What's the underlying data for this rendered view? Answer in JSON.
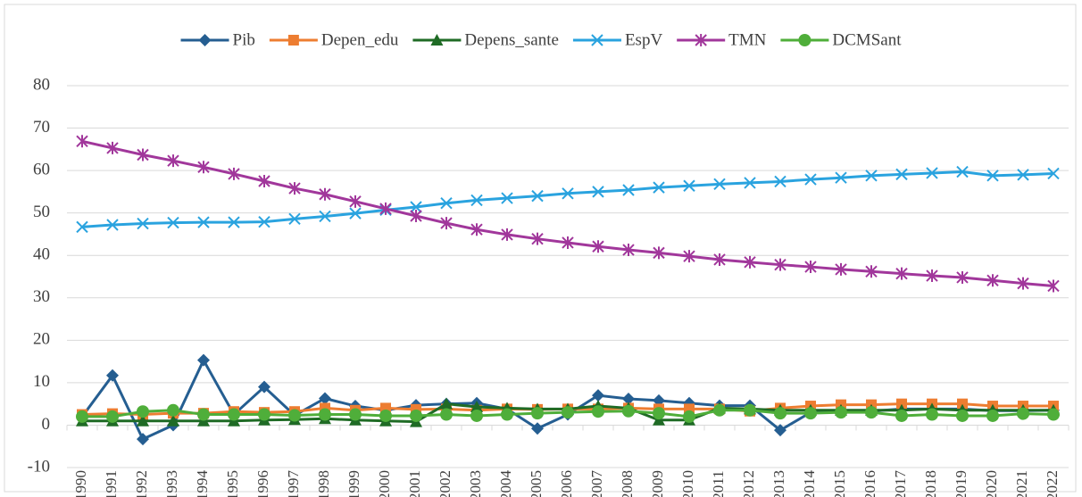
{
  "chart_data": {
    "type": "line",
    "categories": [
      "1990",
      "1991",
      "1992",
      "1993",
      "1994",
      "1995",
      "1996",
      "1997",
      "1998",
      "1999",
      "2000",
      "2001",
      "2002",
      "2003",
      "2004",
      "2005",
      "2006",
      "2007",
      "2008",
      "2009",
      "2010",
      "2011",
      "2012",
      "2013",
      "2014",
      "2015",
      "2016",
      "2017",
      "2018",
      "2019",
      "2020",
      "2021",
      "2022"
    ],
    "ylim": [
      -10,
      80
    ],
    "yticks": [
      -10,
      0,
      10,
      20,
      30,
      40,
      50,
      60,
      70,
      80
    ],
    "grid": true,
    "legend": "top",
    "series": [
      {
        "name": "Pib",
        "color": "#255e91",
        "marker": "diamond",
        "values": [
          2,
          11.7,
          -3.3,
          0,
          15.3,
          2.5,
          9,
          2.3,
          6.3,
          4.5,
          3.5,
          4.7,
          5,
          5.2,
          3.8,
          -0.8,
          2.5,
          7,
          6.2,
          5.8,
          5.2,
          4.6,
          4.6,
          -1.2,
          3,
          3.2,
          3.3,
          3.8,
          3.8,
          3.8,
          3.4,
          3.4,
          3.5
        ]
      },
      {
        "name": "Depen_edu",
        "color": "#ed7d31",
        "marker": "square",
        "values": [
          2.5,
          2.7,
          2.5,
          2.8,
          2.8,
          3.2,
          3,
          3.2,
          4,
          3.5,
          4,
          3.7,
          3.8,
          3.5,
          3.8,
          3.7,
          3.8,
          3.8,
          4,
          3.8,
          3.8,
          3.8,
          3.3,
          4,
          4.5,
          4.8,
          4.8,
          5,
          5,
          5,
          4.5,
          4.5,
          4.5
        ]
      },
      {
        "name": "Depens_sante",
        "color": "#1f6b25",
        "marker": "triangle",
        "values": [
          1,
          1,
          1,
          1,
          1,
          1,
          1.2,
          1.3,
          1.5,
          1.2,
          1,
          0.8,
          5,
          4.3,
          4,
          3.8,
          3.8,
          4.5,
          4,
          1.2,
          1.2,
          4,
          3.8,
          3.5,
          3.5,
          3.5,
          3.5,
          3.5,
          3.8,
          3.5,
          3.5,
          3.5,
          3.5
        ]
      },
      {
        "name": "EspV",
        "color": "#2aa3df",
        "marker": "x",
        "values": [
          46.7,
          47.2,
          47.5,
          47.7,
          47.8,
          47.8,
          47.9,
          48.6,
          49.2,
          49.9,
          50.7,
          51.4,
          52.3,
          53,
          53.5,
          54,
          54.6,
          55,
          55.4,
          56,
          56.4,
          56.8,
          57.1,
          57.4,
          57.9,
          58.3,
          58.8,
          59.1,
          59.4,
          59.7,
          58.8,
          59,
          59.3
        ]
      },
      {
        "name": "TMN",
        "color": "#a1379b",
        "marker": "star",
        "values": [
          66.9,
          65.3,
          63.7,
          62.3,
          60.8,
          59.2,
          57.5,
          55.8,
          54.4,
          52.7,
          51,
          49.3,
          47.6,
          46.1,
          44.9,
          43.9,
          43,
          42.1,
          41.3,
          40.6,
          39.8,
          39,
          38.4,
          37.8,
          37.3,
          36.7,
          36.2,
          35.7,
          35.2,
          34.8,
          34.1,
          33.4,
          32.8
        ]
      },
      {
        "name": "DCMSant",
        "color": "#4fae3a",
        "marker": "circle",
        "values": [
          2,
          2,
          3.2,
          3.5,
          2.5,
          2.5,
          2.5,
          2.3,
          2.5,
          2.5,
          2.2,
          2.2,
          2.5,
          2.2,
          2.5,
          2.8,
          3,
          3.2,
          3.3,
          2.8,
          2,
          3.5,
          3.5,
          2.8,
          2.8,
          3,
          3,
          2.2,
          2.5,
          2.2,
          2.2,
          2.7,
          2.5
        ]
      }
    ]
  }
}
